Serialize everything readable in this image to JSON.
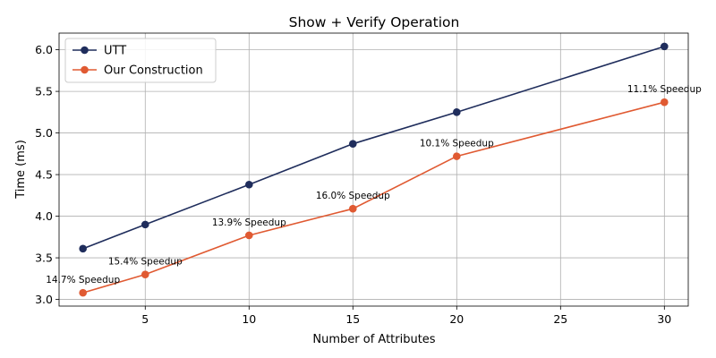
{
  "chart_data": {
    "type": "line",
    "title": "Show + Verify Operation",
    "xlabel": "Number of Attributes",
    "ylabel": "Time (ms)",
    "xlim": [
      0.85,
      31.15
    ],
    "ylim": [
      2.92,
      6.2
    ],
    "xticks": [
      5,
      10,
      15,
      20,
      25,
      30
    ],
    "yticks": [
      3.0,
      3.5,
      4.0,
      4.5,
      5.0,
      5.5,
      6.0
    ],
    "grid": true,
    "legend_position": "top-left",
    "x": [
      2,
      5,
      10,
      15,
      20,
      30
    ],
    "series": [
      {
        "name": "UTT",
        "color": "#1f2d5c",
        "values": [
          3.61,
          3.9,
          4.38,
          4.87,
          5.25,
          6.04
        ]
      },
      {
        "name": "Our Construction",
        "color": "#e05a32",
        "values": [
          3.08,
          3.3,
          3.77,
          4.09,
          4.72,
          5.37
        ]
      }
    ],
    "annotations": [
      {
        "x": 2,
        "y": 3.08,
        "text": "14.7% Speedup"
      },
      {
        "x": 5,
        "y": 3.3,
        "text": "15.4% Speedup"
      },
      {
        "x": 10,
        "y": 3.77,
        "text": "13.9% Speedup"
      },
      {
        "x": 15,
        "y": 4.09,
        "text": "16.0% Speedup"
      },
      {
        "x": 20,
        "y": 4.72,
        "text": "10.1% Speedup"
      },
      {
        "x": 30,
        "y": 5.37,
        "text": "11.1% Speedup"
      }
    ]
  }
}
